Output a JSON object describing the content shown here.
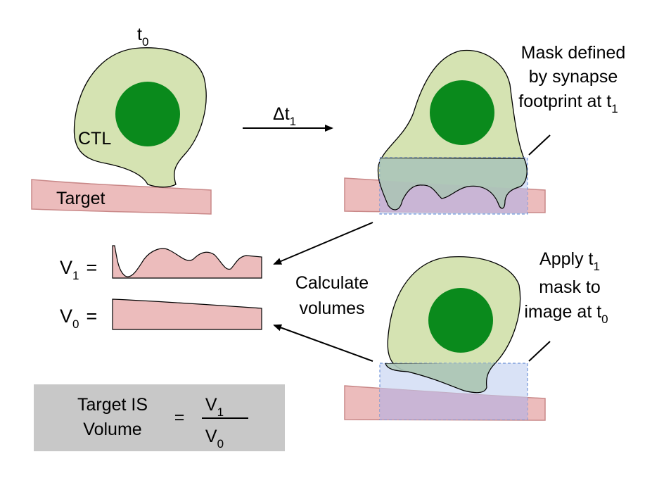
{
  "colors": {
    "cell_fill": "#d5e3b2",
    "nucleus": "#0a8a1c",
    "target_fill": "#ecbcbc",
    "target_stroke": "#c98888",
    "mask_fill": "#b9cbee",
    "mask_stroke": "#6f93d8",
    "overlap_fill": "#c8b3d5",
    "result_box": "#c8c8c8"
  },
  "labels": {
    "t0": {
      "main": "t",
      "sub": "0"
    },
    "cell": "CTL",
    "target": "Target",
    "delta_t": {
      "main": "Δt",
      "sub": "1"
    },
    "mask_defined": {
      "line1": "Mask defined",
      "line2": "by synapse",
      "line3_main": "footprint at t",
      "line3_sub": "1"
    },
    "apply_mask": {
      "line1_main": "Apply t",
      "line1_sub": "1",
      "line2": "mask to",
      "line3_main": "image at t",
      "line3_sub": "0"
    },
    "calculate": {
      "line1": "Calculate",
      "line2": "volumes"
    },
    "v1": {
      "main": "V",
      "sub": "1",
      "eq": "="
    },
    "v0": {
      "main": "V",
      "sub": "0",
      "eq": "="
    },
    "formula": {
      "left_line1": "Target IS",
      "left_line2": "Volume",
      "eq": "=",
      "num_main": "V",
      "num_sub": "1",
      "den_main": "V",
      "den_sub": "0"
    }
  }
}
